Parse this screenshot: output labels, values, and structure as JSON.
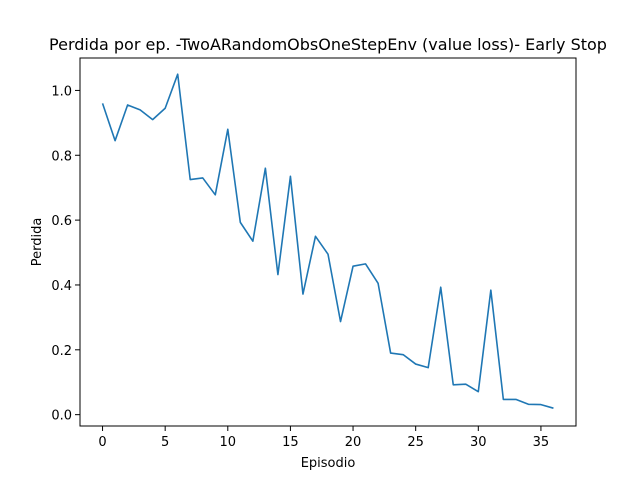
{
  "chart_data": {
    "type": "line",
    "title": "Perdida por ep. -TwoARandomObsOneStepEnv (value loss)- Early Stop",
    "xlabel": "Episodio",
    "ylabel": "Perdida",
    "xlim": [
      -1.8,
      37.8
    ],
    "ylim": [
      -0.035,
      1.1
    ],
    "xticks": [
      0,
      5,
      10,
      15,
      20,
      25,
      30,
      35
    ],
    "yticks": [
      0.0,
      0.2,
      0.4,
      0.6,
      0.8,
      1.0
    ],
    "xtick_labels": [
      "0",
      "5",
      "10",
      "15",
      "20",
      "25",
      "30",
      "35"
    ],
    "ytick_labels": [
      "0.0",
      "0.2",
      "0.4",
      "0.6",
      "0.8",
      "1.0"
    ],
    "grid": false,
    "series": [
      {
        "color": "#1f77b4",
        "x": [
          0,
          1,
          2,
          3,
          4,
          5,
          6,
          7,
          8,
          9,
          10,
          11,
          12,
          13,
          14,
          15,
          16,
          17,
          18,
          19,
          20,
          21,
          22,
          23,
          24,
          25,
          26,
          27,
          28,
          29,
          30,
          31,
          32,
          33,
          34,
          35,
          36
        ],
        "y": [
          0.96,
          0.845,
          0.955,
          0.94,
          0.91,
          0.945,
          1.05,
          0.725,
          0.73,
          0.678,
          0.88,
          0.593,
          0.535,
          0.76,
          0.432,
          0.735,
          0.372,
          0.55,
          0.495,
          0.287,
          0.458,
          0.465,
          0.405,
          0.19,
          0.185,
          0.156,
          0.145,
          0.393,
          0.092,
          0.094,
          0.071,
          0.384,
          0.047,
          0.047,
          0.032,
          0.031,
          0.02
        ]
      }
    ]
  }
}
